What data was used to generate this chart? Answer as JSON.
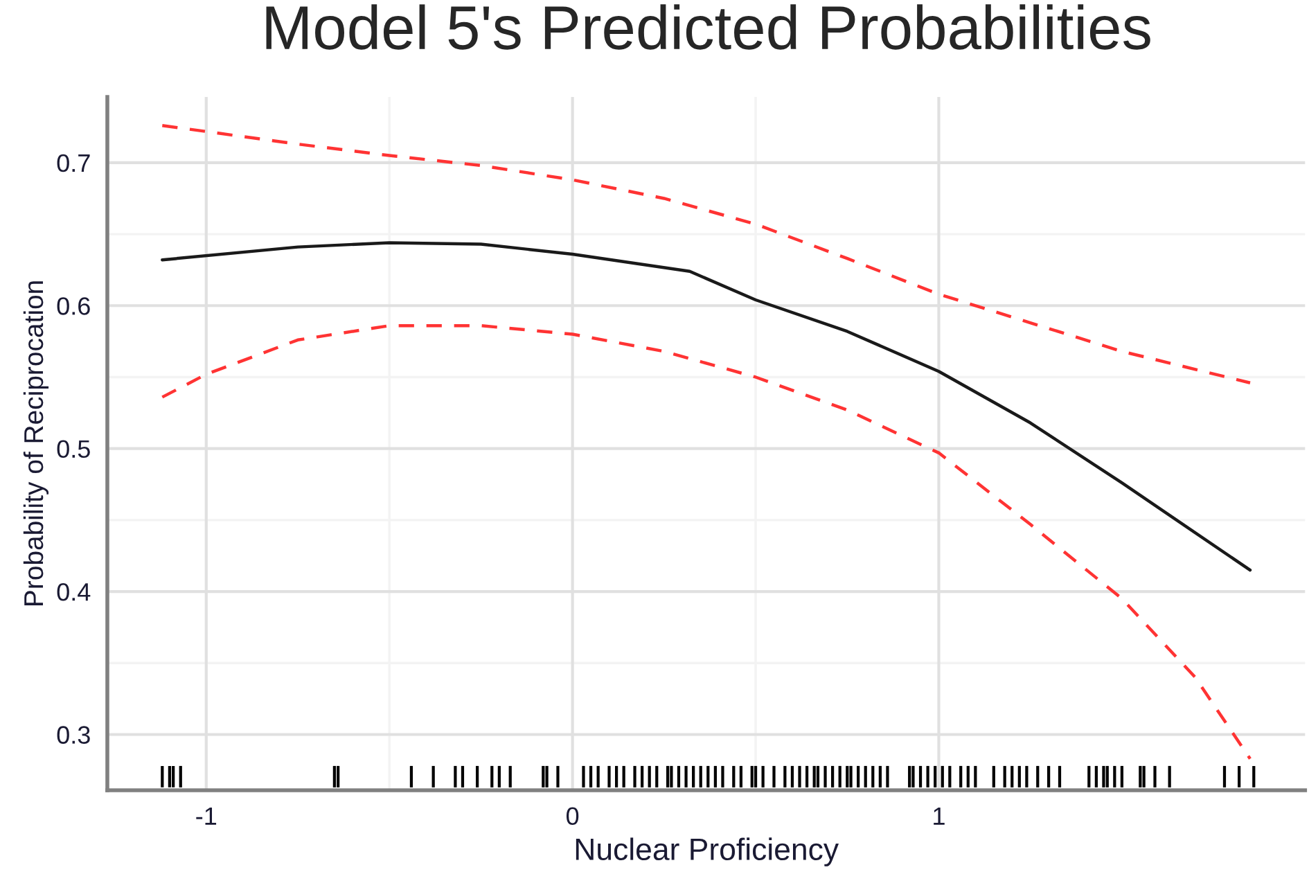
{
  "chart_data": {
    "type": "line",
    "title": "Model 5's Predicted Probabilities",
    "xlabel": "Nuclear Proficiency",
    "ylabel": "Probability of Reciprocation",
    "xlim": [
      -1.27,
      2.0
    ],
    "xticks": [
      -1,
      0,
      1
    ],
    "ylim": [
      0.261,
      0.746
    ],
    "yticks": [
      0.3,
      0.4,
      0.5,
      0.6,
      0.7
    ],
    "grid": true,
    "series": [
      {
        "color": "#1a1a1a",
        "line_style": "solid",
        "x": [
          -1.12,
          -0.75,
          -0.5,
          -0.25,
          0,
          0.32,
          0.5,
          0.75,
          1,
          1.25,
          1.5,
          1.85
        ],
        "values": [
          0.632,
          0.641,
          0.644,
          0.643,
          0.636,
          0.624,
          0.604,
          0.582,
          0.554,
          0.518,
          0.476,
          0.415
        ]
      },
      {
        "color": "#ff3333",
        "line_style": "dashed",
        "x": [
          -1.12,
          -0.75,
          -0.5,
          -0.25,
          0,
          0.25,
          0.5,
          0.75,
          1,
          1.25,
          1.5,
          1.85
        ],
        "values": [
          0.726,
          0.713,
          0.705,
          0.698,
          0.688,
          0.675,
          0.657,
          0.633,
          0.608,
          0.588,
          0.568,
          0.546
        ]
      },
      {
        "color": "#ff3333",
        "line_style": "dashed",
        "x": [
          -1.12,
          -1.0,
          -0.75,
          -0.5,
          -0.25,
          0,
          0.25,
          0.5,
          0.75,
          1,
          1.25,
          1.5,
          1.7,
          1.85
        ],
        "values": [
          0.536,
          0.552,
          0.576,
          0.586,
          0.586,
          0.58,
          0.568,
          0.55,
          0.527,
          0.497,
          0.447,
          0.395,
          0.34,
          0.283
        ]
      },
      {
        "type": "bar",
        "color": "#000000",
        "x": [
          -1.12,
          -1.1,
          -1.09,
          -1.07,
          -0.65,
          -0.64,
          -0.44,
          -0.38,
          -0.32,
          -0.3,
          -0.26,
          -0.22,
          -0.2,
          -0.17,
          -0.08,
          -0.07,
          -0.04,
          0.03,
          0.05,
          0.07,
          0.1,
          0.12,
          0.14,
          0.17,
          0.19,
          0.21,
          0.23,
          0.26,
          0.27,
          0.29,
          0.31,
          0.33,
          0.35,
          0.37,
          0.39,
          0.41,
          0.44,
          0.46,
          0.49,
          0.5,
          0.52,
          0.55,
          0.58,
          0.6,
          0.62,
          0.64,
          0.66,
          0.67,
          0.69,
          0.71,
          0.73,
          0.75,
          0.76,
          0.78,
          0.8,
          0.82,
          0.84,
          0.86,
          0.92,
          0.93,
          0.95,
          0.97,
          0.99,
          1.01,
          1.03,
          1.06,
          1.08,
          1.1,
          1.15,
          1.18,
          1.2,
          1.22,
          1.24,
          1.27,
          1.3,
          1.33,
          1.41,
          1.43,
          1.45,
          1.46,
          1.48,
          1.5,
          1.55,
          1.56,
          1.59,
          1.63,
          1.78,
          1.82,
          1.86
        ],
        "base": [
          0.263,
          0.263,
          0.263,
          0.263,
          0.263,
          0.263,
          0.263,
          0.263,
          0.263,
          0.263,
          0.263,
          0.263,
          0.263,
          0.263,
          0.263,
          0.263,
          0.263,
          0.263,
          0.263,
          0.263,
          0.263,
          0.263,
          0.263,
          0.263,
          0.263,
          0.263,
          0.263,
          0.263,
          0.263,
          0.263,
          0.263,
          0.263,
          0.263,
          0.263,
          0.263,
          0.263,
          0.263,
          0.263,
          0.263,
          0.263,
          0.263,
          0.263,
          0.263,
          0.263,
          0.263,
          0.263,
          0.263,
          0.263,
          0.263,
          0.263,
          0.263,
          0.263,
          0.263,
          0.263,
          0.263,
          0.263,
          0.263,
          0.263,
          0.263,
          0.263,
          0.263,
          0.263,
          0.263,
          0.263,
          0.263,
          0.263,
          0.263,
          0.263,
          0.263,
          0.263,
          0.263,
          0.263,
          0.263,
          0.263,
          0.263,
          0.263,
          0.263,
          0.263,
          0.263,
          0.263,
          0.263,
          0.263,
          0.263,
          0.263,
          0.263,
          0.263,
          0.263,
          0.263,
          0.263
        ],
        "values": [
          0.015,
          0.015,
          0.015,
          0.015,
          0.015,
          0.015,
          0.015,
          0.015,
          0.015,
          0.015,
          0.015,
          0.015,
          0.015,
          0.015,
          0.015,
          0.015,
          0.015,
          0.015,
          0.015,
          0.015,
          0.015,
          0.015,
          0.015,
          0.015,
          0.015,
          0.015,
          0.015,
          0.015,
          0.015,
          0.015,
          0.015,
          0.015,
          0.015,
          0.015,
          0.015,
          0.015,
          0.015,
          0.015,
          0.015,
          0.015,
          0.015,
          0.015,
          0.015,
          0.015,
          0.015,
          0.015,
          0.015,
          0.015,
          0.015,
          0.015,
          0.015,
          0.015,
          0.015,
          0.015,
          0.015,
          0.015,
          0.015,
          0.015,
          0.015,
          0.015,
          0.015,
          0.015,
          0.015,
          0.015,
          0.015,
          0.015,
          0.015,
          0.015,
          0.015,
          0.015,
          0.015,
          0.015,
          0.015,
          0.015,
          0.015,
          0.015,
          0.015,
          0.015,
          0.015,
          0.015,
          0.015,
          0.015,
          0.015,
          0.015,
          0.015,
          0.015,
          0.015,
          0.015,
          0.015
        ]
      }
    ]
  }
}
